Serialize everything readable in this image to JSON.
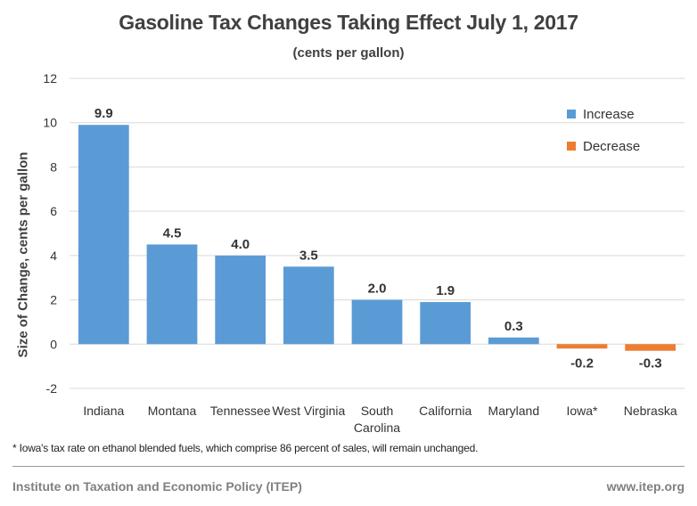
{
  "title": "Gasoline Tax Changes Taking Effect July 1, 2017",
  "subtitle": "(cents per gallon)",
  "colors": {
    "increase": "#5b9bd5",
    "decrease": "#ed7d31",
    "grid": "#d9d9d9"
  },
  "chart_data": {
    "type": "bar",
    "ylabel": "Size of Change, cents per gallon",
    "ylim": [
      -2,
      12
    ],
    "yticks": [
      -2,
      0,
      2,
      4,
      6,
      8,
      10,
      12
    ],
    "grid": true,
    "legend_position": "top-right",
    "categories": [
      "Indiana",
      "Montana",
      "Tennessee",
      "West Virginia",
      "South Carolina",
      "California",
      "Maryland",
      "Iowa*",
      "Nebraska"
    ],
    "category_lines": [
      [
        "Indiana"
      ],
      [
        "Montana"
      ],
      [
        "Tennessee"
      ],
      [
        "West Virginia"
      ],
      [
        "South",
        "Carolina"
      ],
      [
        "California"
      ],
      [
        "Maryland"
      ],
      [
        "Iowa*"
      ],
      [
        "Nebraska"
      ]
    ],
    "values": [
      9.9,
      4.5,
      4.0,
      3.5,
      2.0,
      1.9,
      0.3,
      -0.2,
      -0.3
    ],
    "data_labels": [
      "9.9",
      "4.5",
      "4.0",
      "3.5",
      "2.0",
      "1.9",
      "0.3",
      "-0.2",
      "-0.3"
    ],
    "series": [
      {
        "name": "Increase"
      },
      {
        "name": "Decrease"
      }
    ]
  },
  "footnote": "* Iowa's tax rate on ethanol blended fuels, which comprise 86 percent of sales, will remain unchanged.",
  "source": "Institute on Taxation and Economic Policy (ITEP)",
  "url": "www.itep.org"
}
